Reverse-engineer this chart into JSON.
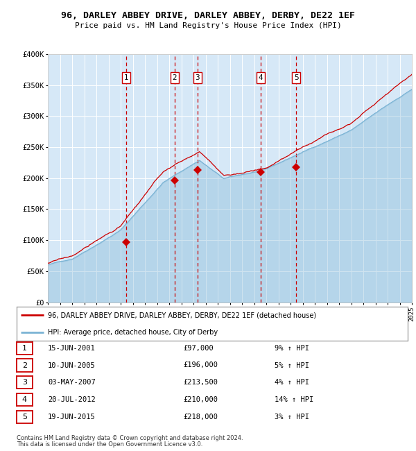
{
  "title": "96, DARLEY ABBEY DRIVE, DARLEY ABBEY, DERBY, DE22 1EF",
  "subtitle": "Price paid vs. HM Land Registry's House Price Index (HPI)",
  "footer1": "Contains HM Land Registry data © Crown copyright and database right 2024.",
  "footer2": "This data is licensed under the Open Government Licence v3.0.",
  "legend_line1": "96, DARLEY ABBEY DRIVE, DARLEY ABBEY, DERBY, DE22 1EF (detached house)",
  "legend_line2": "HPI: Average price, detached house, City of Derby",
  "sale_points": [
    {
      "num": 1,
      "date": "15-JUN-2001",
      "price": 97000,
      "pct": "9%",
      "x_year": 2001.45
    },
    {
      "num": 2,
      "date": "10-JUN-2005",
      "price": 196000,
      "pct": "5%",
      "x_year": 2005.45
    },
    {
      "num": 3,
      "date": "03-MAY-2007",
      "price": 213500,
      "pct": "4%",
      "x_year": 2007.33
    },
    {
      "num": 4,
      "date": "20-JUL-2012",
      "price": 210000,
      "pct": "14%",
      "x_year": 2012.55
    },
    {
      "num": 5,
      "date": "19-JUN-2015",
      "price": 218000,
      "pct": "3%",
      "x_year": 2015.47
    }
  ],
  "bg_color": "#d6e8f7",
  "fig_bg_color": "#ffffff",
  "red_line_color": "#cc0000",
  "blue_line_color": "#7ab3d4",
  "grid_color": "#ffffff",
  "dashed_color": "#cc0000",
  "ylim": [
    0,
    400000
  ],
  "xlim_start": 1995,
  "xlim_end": 2025
}
